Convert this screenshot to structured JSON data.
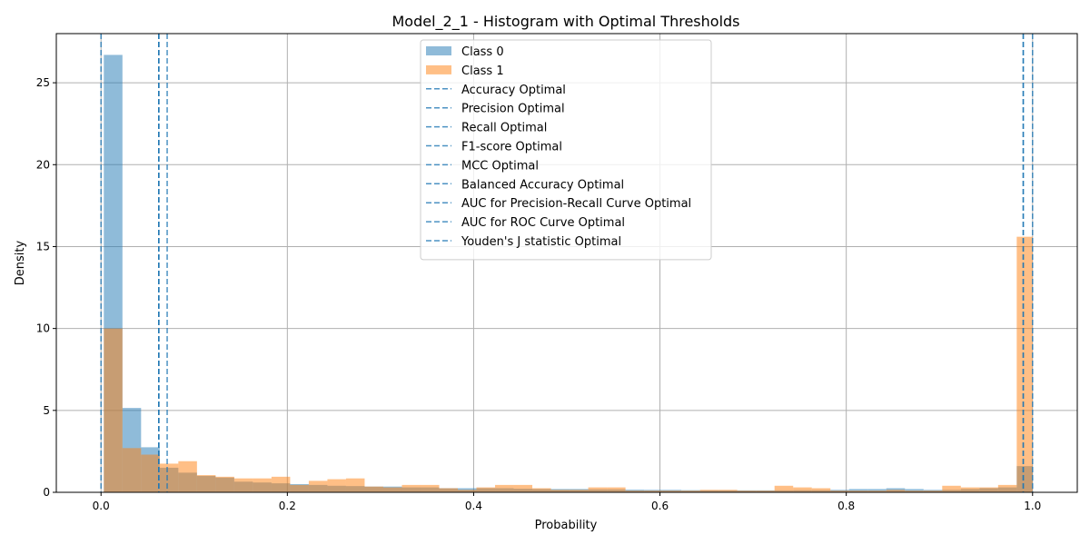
{
  "chart_data": {
    "type": "histogram",
    "title": "Model_2_1 - Histogram with Optimal Thresholds",
    "xlabel": "Probability",
    "ylabel": "Density",
    "xlim": [
      -0.048,
      1.048
    ],
    "ylim": [
      0,
      28
    ],
    "xticks": [
      "0.0",
      "0.2",
      "0.4",
      "0.6",
      "0.8",
      "1.0"
    ],
    "yticks": [
      "0",
      "5",
      "10",
      "15",
      "20",
      "25"
    ],
    "grid": true,
    "legend_position": "upper center",
    "series": [
      {
        "name": "Class 0",
        "color": "#1f77b4",
        "alpha": 0.5,
        "bins": [
          [
            0.003,
            0.023,
            26.7
          ],
          [
            0.023,
            0.043,
            5.15
          ],
          [
            0.043,
            0.063,
            2.75
          ],
          [
            0.063,
            0.083,
            1.5
          ],
          [
            0.083,
            0.103,
            1.2
          ],
          [
            0.103,
            0.123,
            1.0
          ],
          [
            0.123,
            0.143,
            0.9
          ],
          [
            0.143,
            0.163,
            0.65
          ],
          [
            0.163,
            0.183,
            0.6
          ],
          [
            0.183,
            0.203,
            0.55
          ],
          [
            0.203,
            0.223,
            0.5
          ],
          [
            0.223,
            0.243,
            0.45
          ],
          [
            0.243,
            0.263,
            0.4
          ],
          [
            0.263,
            0.283,
            0.38
          ],
          [
            0.283,
            0.303,
            0.35
          ],
          [
            0.303,
            0.323,
            0.35
          ],
          [
            0.323,
            0.343,
            0.3
          ],
          [
            0.343,
            0.363,
            0.3
          ],
          [
            0.363,
            0.383,
            0.25
          ],
          [
            0.383,
            0.403,
            0.25
          ],
          [
            0.403,
            0.423,
            0.25
          ],
          [
            0.423,
            0.443,
            0.25
          ],
          [
            0.443,
            0.463,
            0.22
          ],
          [
            0.463,
            0.483,
            0.2
          ],
          [
            0.483,
            0.503,
            0.2
          ],
          [
            0.503,
            0.523,
            0.2
          ],
          [
            0.523,
            0.543,
            0.18
          ],
          [
            0.543,
            0.563,
            0.18
          ],
          [
            0.563,
            0.583,
            0.16
          ],
          [
            0.583,
            0.603,
            0.15
          ],
          [
            0.603,
            0.623,
            0.15
          ],
          [
            0.623,
            0.643,
            0.13
          ],
          [
            0.643,
            0.663,
            0.12
          ],
          [
            0.663,
            0.683,
            0.12
          ],
          [
            0.683,
            0.703,
            0.12
          ],
          [
            0.703,
            0.723,
            0.12
          ],
          [
            0.723,
            0.743,
            0.12
          ],
          [
            0.743,
            0.763,
            0.13
          ],
          [
            0.763,
            0.783,
            0.13
          ],
          [
            0.783,
            0.803,
            0.15
          ],
          [
            0.803,
            0.823,
            0.2
          ],
          [
            0.823,
            0.843,
            0.2
          ],
          [
            0.843,
            0.863,
            0.25
          ],
          [
            0.863,
            0.883,
            0.2
          ],
          [
            0.883,
            0.903,
            0.15
          ],
          [
            0.903,
            0.923,
            0.15
          ],
          [
            0.923,
            0.943,
            0.2
          ],
          [
            0.943,
            0.963,
            0.25
          ],
          [
            0.963,
            0.983,
            0.3
          ],
          [
            0.983,
            1.0,
            1.6
          ]
        ]
      },
      {
        "name": "Class 1",
        "color": "#ff7f0e",
        "alpha": 0.5,
        "bins": [
          [
            0.003,
            0.023,
            10.0
          ],
          [
            0.023,
            0.043,
            2.7
          ],
          [
            0.043,
            0.063,
            2.3
          ],
          [
            0.063,
            0.083,
            1.75
          ],
          [
            0.083,
            0.103,
            1.9
          ],
          [
            0.103,
            0.123,
            1.05
          ],
          [
            0.123,
            0.143,
            0.95
          ],
          [
            0.143,
            0.163,
            0.85
          ],
          [
            0.163,
            0.183,
            0.85
          ],
          [
            0.183,
            0.203,
            0.95
          ],
          [
            0.203,
            0.223,
            0.45
          ],
          [
            0.223,
            0.243,
            0.7
          ],
          [
            0.243,
            0.263,
            0.8
          ],
          [
            0.263,
            0.283,
            0.85
          ],
          [
            0.283,
            0.303,
            0.35
          ],
          [
            0.303,
            0.323,
            0.3
          ],
          [
            0.323,
            0.343,
            0.45
          ],
          [
            0.343,
            0.363,
            0.45
          ],
          [
            0.363,
            0.383,
            0.25
          ],
          [
            0.383,
            0.403,
            0.15
          ],
          [
            0.403,
            0.423,
            0.3
          ],
          [
            0.423,
            0.443,
            0.45
          ],
          [
            0.443,
            0.463,
            0.45
          ],
          [
            0.463,
            0.483,
            0.25
          ],
          [
            0.483,
            0.503,
            0.15
          ],
          [
            0.503,
            0.523,
            0.15
          ],
          [
            0.523,
            0.543,
            0.3
          ],
          [
            0.543,
            0.563,
            0.3
          ],
          [
            0.563,
            0.583,
            0.1
          ],
          [
            0.583,
            0.603,
            0.1
          ],
          [
            0.603,
            0.623,
            0.1
          ],
          [
            0.623,
            0.643,
            0.1
          ],
          [
            0.643,
            0.663,
            0.15
          ],
          [
            0.663,
            0.683,
            0.15
          ],
          [
            0.683,
            0.703,
            0.1
          ],
          [
            0.703,
            0.723,
            0.1
          ],
          [
            0.723,
            0.743,
            0.4
          ],
          [
            0.743,
            0.763,
            0.3
          ],
          [
            0.763,
            0.783,
            0.25
          ],
          [
            0.783,
            0.803,
            0.1
          ],
          [
            0.803,
            0.823,
            0.1
          ],
          [
            0.823,
            0.843,
            0.1
          ],
          [
            0.843,
            0.863,
            0.15
          ],
          [
            0.863,
            0.883,
            0.1
          ],
          [
            0.883,
            0.903,
            0.1
          ],
          [
            0.903,
            0.923,
            0.4
          ],
          [
            0.923,
            0.943,
            0.3
          ],
          [
            0.943,
            0.963,
            0.3
          ],
          [
            0.963,
            0.983,
            0.45
          ],
          [
            0.983,
            1.0,
            15.6
          ]
        ]
      }
    ],
    "threshold_lines": [
      {
        "name": "Accuracy Optimal",
        "x": 0.062
      },
      {
        "name": "Precision Optimal",
        "x": 0.99
      },
      {
        "name": "Recall Optimal",
        "x": 0.0
      },
      {
        "name": "F1-score Optimal",
        "x": 0.071
      },
      {
        "name": "MCC Optimal",
        "x": 0.062
      },
      {
        "name": "Balanced Accuracy Optimal",
        "x": 0.062
      },
      {
        "name": "AUC for Precision-Recall Curve Optimal",
        "x": 0.99
      },
      {
        "name": "AUC for ROC Curve Optimal",
        "x": 1.0
      },
      {
        "name": "Youden's J statistic Optimal",
        "x": 0.062
      }
    ],
    "threshold_line_color": "#1f77b4"
  }
}
